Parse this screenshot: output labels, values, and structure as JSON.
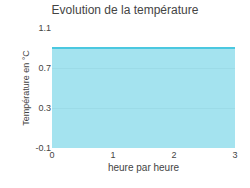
{
  "chart_data": {
    "type": "area",
    "title": "Evolution de la température",
    "x_label": "heure par heure",
    "y_label": "Température en °C",
    "x": [
      0,
      3
    ],
    "values": [
      0.9,
      0.9
    ],
    "color": "#4ac8e0",
    "xlim": [
      0,
      3
    ],
    "ylim": [
      -0.1,
      1.1
    ],
    "xticks": [
      0,
      1,
      2,
      3
    ],
    "yticks": [
      -0.1,
      0.3,
      0.7,
      1.1
    ],
    "grid": true
  }
}
